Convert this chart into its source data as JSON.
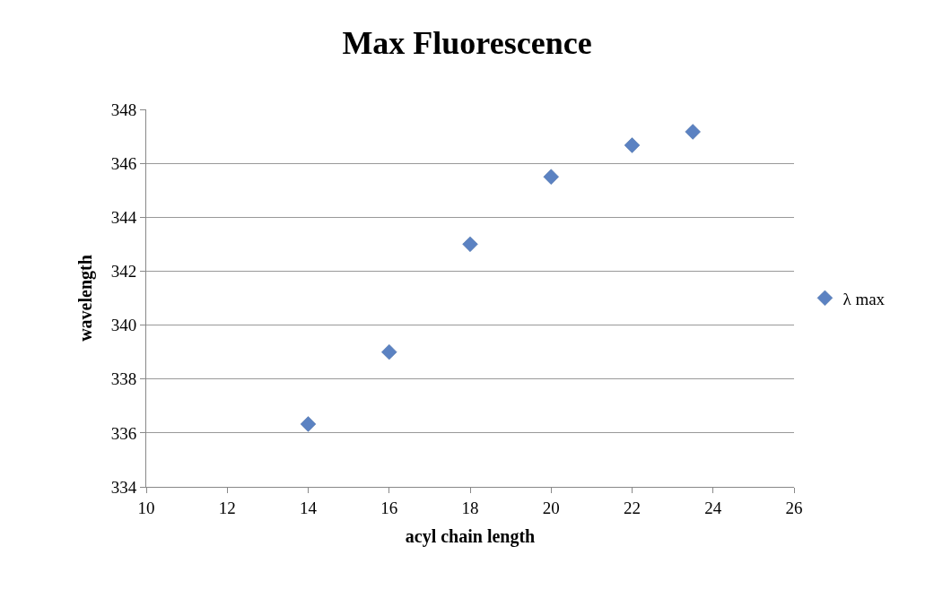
{
  "chart_data": {
    "type": "scatter",
    "title": "Max Fluorescence",
    "xlabel": "acyl chain length",
    "ylabel": "wavelength",
    "x": [
      14,
      16,
      18,
      20,
      22,
      23.5
    ],
    "series": [
      {
        "name": "λ max",
        "color": "#5b82c2",
        "values": [
          336.33,
          339.0,
          343.0,
          345.5,
          346.67,
          347.17
        ]
      }
    ],
    "xlim": [
      10,
      26
    ],
    "xticks": [
      10,
      12,
      14,
      16,
      18,
      20,
      22,
      24,
      26
    ],
    "ylim": [
      334,
      348
    ],
    "yticks": [
      334,
      336,
      338,
      340,
      342,
      344,
      346,
      348
    ],
    "grid": "y",
    "legend": "right",
    "marker": "diamond"
  }
}
